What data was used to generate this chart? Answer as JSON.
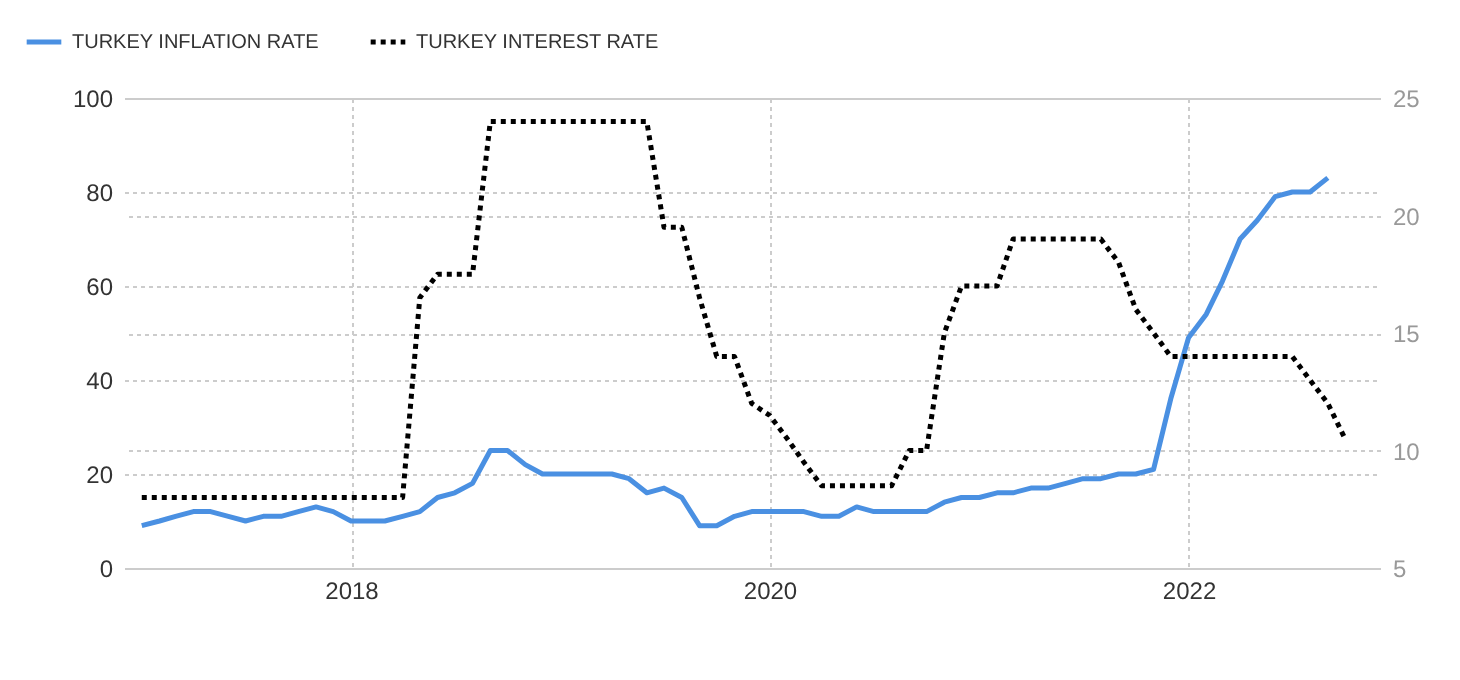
{
  "chart_data": {
    "type": "line",
    "x": [
      "2017-01",
      "2017-02",
      "2017-03",
      "2017-04",
      "2017-05",
      "2017-06",
      "2017-07",
      "2017-08",
      "2017-09",
      "2017-10",
      "2017-11",
      "2017-12",
      "2018-01",
      "2018-02",
      "2018-03",
      "2018-04",
      "2018-05",
      "2018-06",
      "2018-07",
      "2018-08",
      "2018-09",
      "2018-10",
      "2018-11",
      "2018-12",
      "2019-01",
      "2019-02",
      "2019-03",
      "2019-04",
      "2019-05",
      "2019-06",
      "2019-07",
      "2019-08",
      "2019-09",
      "2019-10",
      "2019-11",
      "2019-12",
      "2020-01",
      "2020-02",
      "2020-03",
      "2020-04",
      "2020-05",
      "2020-06",
      "2020-07",
      "2020-08",
      "2020-09",
      "2020-10",
      "2020-11",
      "2020-12",
      "2021-01",
      "2021-02",
      "2021-03",
      "2021-04",
      "2021-05",
      "2021-06",
      "2021-07",
      "2021-08",
      "2021-09",
      "2021-10",
      "2021-11",
      "2021-12",
      "2022-01",
      "2022-02",
      "2022-03",
      "2022-04",
      "2022-05",
      "2022-06",
      "2022-07",
      "2022-08",
      "2022-09",
      "2022-10"
    ],
    "series": [
      {
        "name": "TURKEY INFLATION RATE",
        "color": "#4a90e2",
        "line_style": "solid",
        "values": [
          9,
          10,
          11,
          12,
          12,
          11,
          10,
          11,
          11,
          12,
          13,
          12,
          10,
          10,
          10,
          11,
          12,
          15,
          16,
          18,
          25,
          25,
          22,
          20,
          20,
          20,
          20,
          20,
          19,
          16,
          17,
          15,
          9,
          9,
          11,
          12,
          12,
          12,
          12,
          11,
          11,
          13,
          12,
          12,
          12,
          12,
          14,
          15,
          15,
          16,
          16,
          17,
          17,
          18,
          19,
          19,
          20,
          20,
          21,
          36,
          49,
          54,
          61,
          70,
          74,
          79,
          80,
          80,
          83,
          null
        ]
      },
      {
        "name": "TURKEY INTEREST RATE",
        "color": "#000000",
        "line_style": "dotted",
        "axis": "y2",
        "values": [
          8,
          8,
          8,
          8,
          8,
          8,
          8,
          8,
          8,
          8,
          8,
          8,
          8,
          8,
          8,
          8,
          16.5,
          17.5,
          17.5,
          17.5,
          24,
          24,
          24,
          24,
          24,
          24,
          24,
          24,
          24,
          24,
          19.5,
          19.5,
          16.5,
          14,
          14,
          12,
          11.5,
          10.5,
          9.5,
          8.5,
          8.5,
          8.5,
          8.5,
          8.5,
          10,
          10,
          15,
          17,
          17,
          17,
          19,
          19,
          19,
          19,
          19,
          19,
          18,
          16,
          15,
          14,
          14,
          14,
          14,
          14,
          14,
          14,
          14,
          13,
          12,
          10.5
        ]
      }
    ],
    "xlim": [
      "2016-12",
      "2022-12"
    ],
    "xticks": [
      {
        "value": "2018",
        "label": "2018"
      },
      {
        "value": "2020",
        "label": "2020"
      },
      {
        "value": "2022",
        "label": "2022"
      }
    ],
    "ylim": [
      0,
      100
    ],
    "yticks": [
      0,
      20,
      40,
      60,
      80,
      100
    ],
    "y2lim": [
      5,
      25
    ],
    "y2ticks": [
      5,
      10,
      15,
      20,
      25
    ],
    "grid": true,
    "legend": "top left"
  }
}
